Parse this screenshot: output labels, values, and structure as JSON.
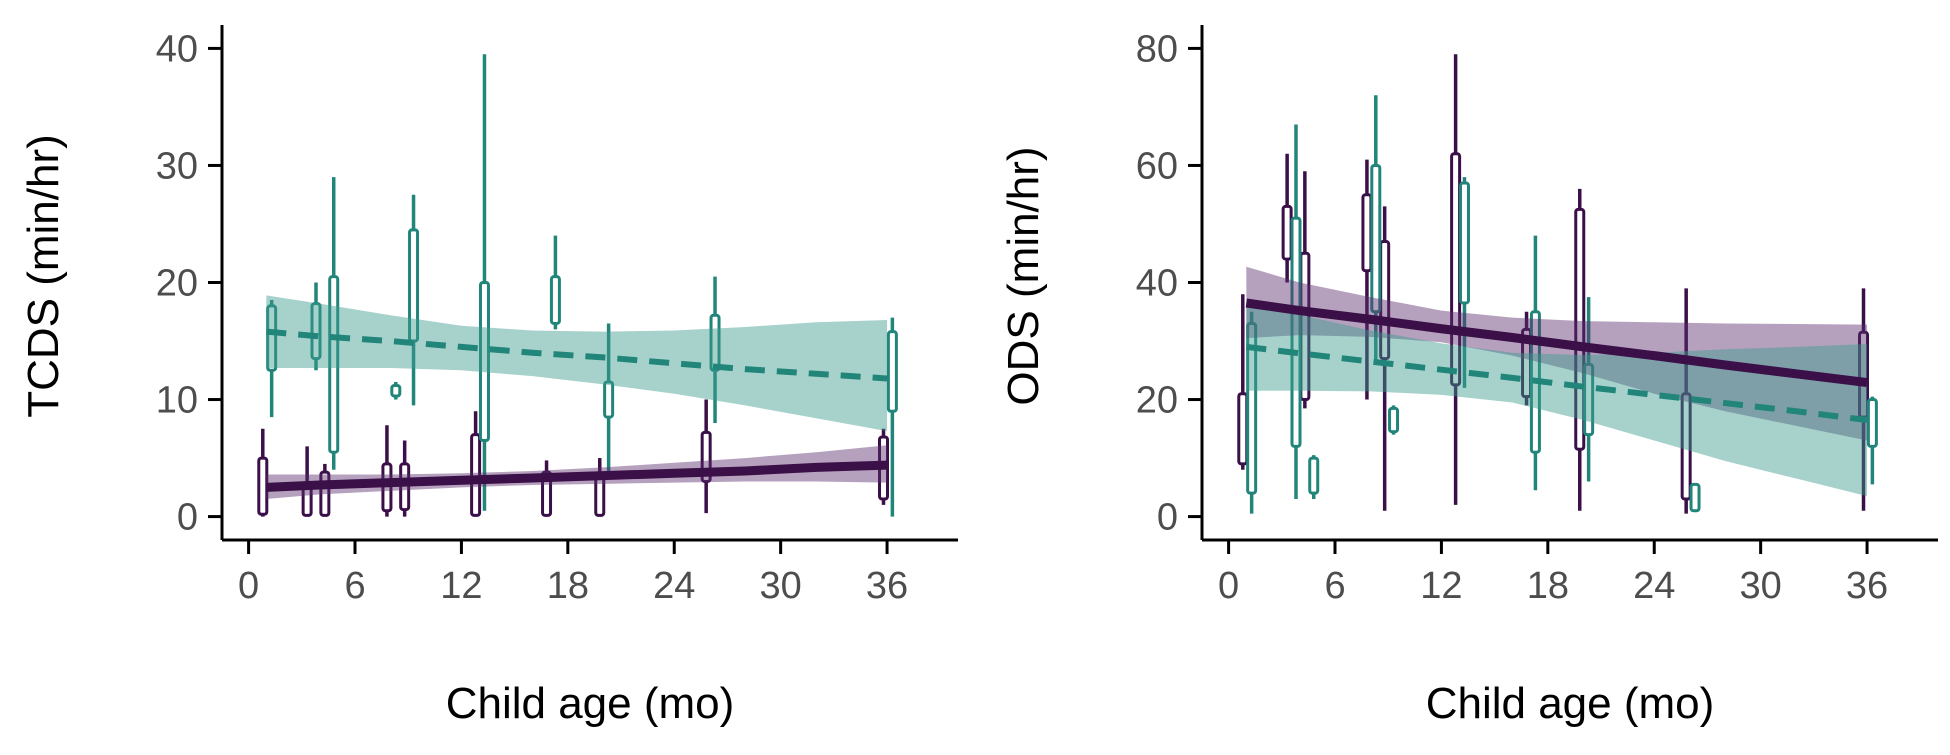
{
  "colors": {
    "group_a": "#3b0f47",
    "group_b": "#21857a",
    "band_a": "#5b2e6e",
    "band_b": "#3b9b8f",
    "axis": "#000000",
    "tick_text": "#4d4d4d"
  },
  "chart_data": [
    {
      "type": "line",
      "panel": "left",
      "xlabel": "Child age (mo)",
      "ylabel": "TCDS (min/hr)",
      "xlim": [
        -1.5,
        40
      ],
      "ylim": [
        -2,
        42
      ],
      "xticks": [
        0,
        6,
        12,
        18,
        24,
        30,
        36
      ],
      "xtick_labels": [
        "0",
        "6",
        "12",
        "18",
        "24",
        "30",
        "36"
      ],
      "yticks": [
        0,
        10,
        20,
        30,
        40
      ],
      "ytick_labels": [
        "0",
        "10",
        "20",
        "30",
        "40"
      ],
      "grid": false,
      "series": [
        {
          "group": "group_a",
          "line_style": "solid",
          "fit_x": [
            1,
            4,
            8,
            12,
            16,
            20,
            24,
            28,
            32,
            36
          ],
          "fit_y": [
            2.5,
            2.7,
            2.9,
            3.1,
            3.3,
            3.5,
            3.7,
            3.9,
            4.2,
            4.4
          ],
          "ci_lower": [
            1.5,
            1.9,
            2.2,
            2.5,
            2.7,
            2.8,
            2.9,
            3.0,
            3.0,
            2.9
          ],
          "ci_upper": [
            3.6,
            3.6,
            3.6,
            3.7,
            3.9,
            4.2,
            4.6,
            5.0,
            5.5,
            6.1
          ],
          "boxes": [
            {
              "x": 0.8,
              "min": 0,
              "q1": 0.2,
              "median": 1.8,
              "q3": 5.0,
              "max": 7.5
            },
            {
              "x": 3.3,
              "min": 0,
              "q1": 0.1,
              "median": 1.0,
              "q3": 2.8,
              "max": 6.0
            },
            {
              "x": 4.3,
              "min": 0,
              "q1": 0.1,
              "median": 1.2,
              "q3": 3.8,
              "max": 4.5
            },
            {
              "x": 7.8,
              "min": 0,
              "q1": 0.5,
              "median": 2.0,
              "q3": 4.5,
              "max": 7.8
            },
            {
              "x": 8.8,
              "min": 0,
              "q1": 0.6,
              "median": 2.2,
              "q3": 4.5,
              "max": 6.5
            },
            {
              "x": 12.8,
              "min": 0,
              "q1": 0.1,
              "median": 2.0,
              "q3": 7.0,
              "max": 9.0
            },
            {
              "x": 16.8,
              "min": 0,
              "q1": 0.1,
              "median": 1.5,
              "q3": 3.8,
              "max": 4.8
            },
            {
              "x": 19.8,
              "min": 0,
              "q1": 0.1,
              "median": 1.2,
              "q3": 3.5,
              "max": 5.0
            },
            {
              "x": 25.8,
              "min": 0.3,
              "q1": 3.0,
              "median": 4.5,
              "q3": 7.2,
              "max": 10.0
            },
            {
              "x": 35.8,
              "min": 1.0,
              "q1": 1.5,
              "median": 3.5,
              "q3": 6.8,
              "max": 7.5
            }
          ]
        },
        {
          "group": "group_b",
          "line_style": "dashed",
          "fit_x": [
            1,
            4,
            8,
            12,
            16,
            20,
            24,
            28,
            32,
            36
          ],
          "fit_y": [
            15.8,
            15.4,
            15.0,
            14.5,
            14.0,
            13.6,
            13.1,
            12.6,
            12.2,
            11.8
          ],
          "ci_lower": [
            12.7,
            12.7,
            12.7,
            12.5,
            12.0,
            11.3,
            10.5,
            9.5,
            8.4,
            7.3
          ],
          "ci_upper": [
            18.9,
            18.2,
            17.2,
            16.3,
            15.9,
            15.8,
            15.9,
            16.2,
            16.6,
            16.8
          ],
          "boxes": [
            {
              "x": 1.3,
              "min": 8.5,
              "q1": 12.5,
              "median": 15.5,
              "q3": 18.0,
              "max": 18.5
            },
            {
              "x": 3.8,
              "min": 12.5,
              "q1": 13.5,
              "median": 15.5,
              "q3": 18.2,
              "max": 20.0
            },
            {
              "x": 4.8,
              "min": 4.0,
              "q1": 5.5,
              "median": 8.5,
              "q3": 20.5,
              "max": 29.0
            },
            {
              "x": 8.3,
              "min": 10.0,
              "q1": 10.3,
              "median": 10.8,
              "q3": 11.2,
              "max": 11.5
            },
            {
              "x": 9.3,
              "min": 9.5,
              "q1": 15.0,
              "median": 17.0,
              "q3": 24.5,
              "max": 27.5
            },
            {
              "x": 13.3,
              "min": 0.5,
              "q1": 6.5,
              "median": 11.0,
              "q3": 20.0,
              "max": 39.5
            },
            {
              "x": 17.3,
              "min": 16.0,
              "q1": 16.5,
              "median": 18.5,
              "q3": 20.5,
              "max": 24.0
            },
            {
              "x": 20.3,
              "min": 3.5,
              "q1": 8.5,
              "median": 9.5,
              "q3": 11.5,
              "max": 16.5
            },
            {
              "x": 26.3,
              "min": 8.0,
              "q1": 12.5,
              "median": 15.0,
              "q3": 17.2,
              "max": 20.5
            },
            {
              "x": 36.3,
              "min": 0,
              "q1": 9.0,
              "median": 12.0,
              "q3": 15.8,
              "max": 17.0
            }
          ]
        }
      ]
    },
    {
      "type": "line",
      "panel": "right",
      "xlabel": "Child age (mo)",
      "ylabel": "ODS (min/hr)",
      "xlim": [
        -1.5,
        40
      ],
      "ylim": [
        -4,
        84
      ],
      "xticks": [
        0,
        6,
        12,
        18,
        24,
        30,
        36
      ],
      "xtick_labels": [
        "0",
        "6",
        "12",
        "18",
        "24",
        "30",
        "36"
      ],
      "yticks": [
        0,
        20,
        40,
        60,
        80
      ],
      "ytick_labels": [
        "0",
        "20",
        "40",
        "60",
        "80"
      ],
      "grid": false,
      "series": [
        {
          "group": "group_a",
          "line_style": "solid",
          "fit_x": [
            1,
            4,
            8,
            12,
            16,
            20,
            24,
            28,
            32,
            36
          ],
          "fit_y": [
            36.5,
            35.2,
            33.7,
            32.1,
            30.6,
            29.0,
            27.5,
            25.9,
            24.4,
            22.9
          ],
          "ci_lower": [
            30.5,
            31.0,
            30.7,
            29.8,
            27.5,
            24.5,
            21.0,
            18.0,
            15.5,
            13.0
          ],
          "ci_upper": [
            42.7,
            40.0,
            37.5,
            35.2,
            34.0,
            33.4,
            33.2,
            33.0,
            32.9,
            32.8
          ],
          "boxes": [
            {
              "x": 0.8,
              "min": 8.0,
              "q1": 9.0,
              "median": 14.0,
              "q3": 21.0,
              "max": 38.0
            },
            {
              "x": 3.3,
              "min": 40.0,
              "q1": 44.0,
              "median": 48.0,
              "q3": 53.0,
              "max": 62.0
            },
            {
              "x": 4.3,
              "min": 18.5,
              "q1": 20.0,
              "median": 33.0,
              "q3": 45.0,
              "max": 59.0
            },
            {
              "x": 7.8,
              "min": 20.0,
              "q1": 42.0,
              "median": 50.0,
              "q3": 55.0,
              "max": 61.0
            },
            {
              "x": 8.8,
              "min": 1.0,
              "q1": 27.0,
              "median": 35.0,
              "q3": 47.0,
              "max": 53.0
            },
            {
              "x": 12.8,
              "min": 2.0,
              "q1": 22.5,
              "median": 45.0,
              "q3": 62.0,
              "max": 79.0
            },
            {
              "x": 16.8,
              "min": 19.0,
              "q1": 20.5,
              "median": 25.0,
              "q3": 32.0,
              "max": 35.0
            },
            {
              "x": 19.8,
              "min": 1.0,
              "q1": 11.5,
              "median": 30.0,
              "q3": 52.5,
              "max": 56.0
            },
            {
              "x": 25.8,
              "min": 0.5,
              "q1": 3.0,
              "median": 10.0,
              "q3": 21.0,
              "max": 39.0
            },
            {
              "x": 35.8,
              "min": 1.0,
              "q1": 17.0,
              "median": 22.0,
              "q3": 31.5,
              "max": 39.0
            }
          ]
        },
        {
          "group": "group_b",
          "line_style": "dashed",
          "fit_x": [
            1,
            4,
            8,
            12,
            16,
            20,
            24,
            28,
            32,
            36
          ],
          "fit_y": [
            29.0,
            27.9,
            26.5,
            25.1,
            23.7,
            22.2,
            20.8,
            19.4,
            18.0,
            16.5
          ],
          "ci_lower": [
            21.5,
            21.5,
            21.4,
            20.8,
            19.5,
            16.5,
            13.0,
            9.5,
            6.5,
            3.5
          ],
          "ci_upper": [
            36.5,
            34.5,
            31.8,
            29.6,
            28.0,
            27.6,
            28.0,
            28.6,
            29.0,
            29.5
          ],
          "boxes": [
            {
              "x": 1.3,
              "min": 0.5,
              "q1": 4.0,
              "median": 20.0,
              "q3": 33.0,
              "max": 35.0
            },
            {
              "x": 3.8,
              "min": 3.0,
              "q1": 12.0,
              "median": 24.0,
              "q3": 51.0,
              "max": 67.0
            },
            {
              "x": 4.8,
              "min": 3.0,
              "q1": 4.0,
              "median": 6.0,
              "q3": 10.0,
              "max": 10.5
            },
            {
              "x": 8.3,
              "min": 26.0,
              "q1": 35.0,
              "median": 47.0,
              "q3": 60.0,
              "max": 72.0
            },
            {
              "x": 9.3,
              "min": 14.0,
              "q1": 14.5,
              "median": 16.0,
              "q3": 18.5,
              "max": 19.0
            },
            {
              "x": 13.3,
              "min": 22.0,
              "q1": 36.5,
              "median": 48.0,
              "q3": 57.0,
              "max": 58.0
            },
            {
              "x": 17.3,
              "min": 4.5,
              "q1": 11.0,
              "median": 22.0,
              "q3": 35.0,
              "max": 48.0
            },
            {
              "x": 20.3,
              "min": 6.0,
              "q1": 14.0,
              "median": 20.0,
              "q3": 26.0,
              "max": 37.5
            },
            {
              "x": 26.3,
              "min": 1.0,
              "q1": 1.0,
              "median": 3.0,
              "q3": 5.5,
              "max": 5.5
            },
            {
              "x": 36.3,
              "min": 5.5,
              "q1": 12.0,
              "median": 15.0,
              "q3": 20.0,
              "max": 20.5
            }
          ]
        }
      ]
    }
  ]
}
